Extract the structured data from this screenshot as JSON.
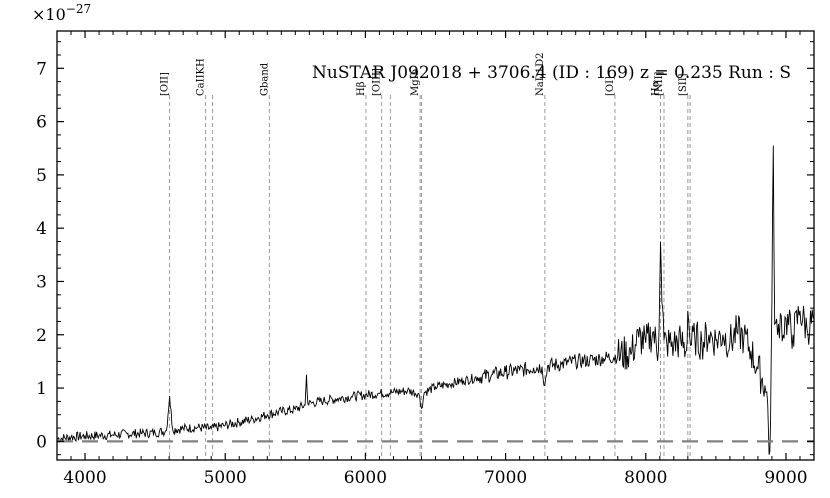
{
  "chart_data": {
    "type": "line",
    "title": "NuSTAR J092018 + 3706.4 (ID : 169)   z = 0.235   Run : S",
    "axis_multiplier": "×10",
    "axis_multiplier_exp": "−27",
    "xlabel": "",
    "ylabel": "",
    "xlim": [
      3800,
      9200
    ],
    "ylim": [
      -0.35,
      7.7
    ],
    "xticks": [
      4000,
      5000,
      6000,
      7000,
      8000,
      9000
    ],
    "yticks": [
      0,
      1,
      2,
      3,
      4,
      5,
      6,
      7
    ],
    "grid": false,
    "zero_line": {
      "y": 0,
      "style": "dashed",
      "color": "#808080"
    },
    "line_color": "#000000",
    "emission_lines": [
      {
        "label": "[OII]",
        "x": 4603
      },
      {
        "label": "CaIIKH",
        "x": 4860
      },
      {
        "label": "CaIIKH",
        "x": 4910
      },
      {
        "label": "Gband",
        "x": 5315
      },
      {
        "label": "Hβ",
        "x": 6004
      },
      {
        "label": "[OIII]",
        "x": 6116
      },
      {
        "label": "[OIII]",
        "x": 6178
      },
      {
        "label": "MgIb",
        "x": 6390
      },
      {
        "label": "MgIb",
        "x": 6400
      },
      {
        "label": "NaD1D2",
        "x": 7280
      },
      {
        "label": "[OI]",
        "x": 7780
      },
      {
        "label": "Hα",
        "x": 8105
      },
      {
        "label": "[NII]",
        "x": 8130
      },
      {
        "label": "[SII]",
        "x": 8300
      },
      {
        "label": "[SII]",
        "x": 8316
      }
    ],
    "series": [
      {
        "values_description": "spectrum flux",
        "x": [
          3800,
          3900,
          4000,
          4100,
          4200,
          4300,
          4400,
          4500,
          4580,
          4603,
          4625,
          4700,
          4800,
          4900,
          5000,
          5100,
          5200,
          5300,
          5400,
          5500,
          5570,
          5580,
          5590,
          5700,
          5800,
          5900,
          6000,
          6100,
          6200,
          6300,
          6380,
          6400,
          6420,
          6500,
          6600,
          6700,
          6800,
          6900,
          7000,
          7100,
          7200,
          7260,
          7280,
          7300,
          7400,
          7500,
          7600,
          7700,
          7800,
          7900,
          7950,
          8000,
          8050,
          8090,
          8105,
          8115,
          8130,
          8150,
          8200,
          8250,
          8290,
          8300,
          8320,
          8350,
          8400,
          8450,
          8500,
          8550,
          8600,
          8650,
          8700,
          8750,
          8800,
          8850,
          8870,
          8880,
          8890,
          8900,
          8910,
          8920,
          8940,
          8960,
          8980,
          9000,
          9050,
          9100,
          9150,
          9200
        ],
        "y": [
          0.05,
          0.08,
          0.1,
          0.11,
          0.12,
          0.14,
          0.15,
          0.16,
          0.2,
          0.85,
          0.22,
          0.24,
          0.26,
          0.24,
          0.3,
          0.36,
          0.42,
          0.5,
          0.56,
          0.6,
          0.68,
          1.25,
          0.7,
          0.76,
          0.8,
          0.84,
          0.87,
          0.9,
          0.92,
          0.95,
          0.9,
          0.62,
          0.92,
          1.02,
          1.08,
          1.14,
          1.2,
          1.25,
          1.3,
          1.33,
          1.38,
          1.4,
          1.05,
          1.42,
          1.45,
          1.5,
          1.52,
          1.56,
          1.6,
          1.68,
          1.95,
          1.85,
          2.05,
          1.7,
          3.75,
          2.6,
          1.9,
          1.85,
          1.82,
          1.88,
          1.7,
          2.45,
          1.8,
          1.95,
          1.85,
          2.0,
          1.9,
          2.0,
          1.85,
          2.05,
          1.95,
          1.7,
          1.35,
          1.05,
          0.7,
          -0.25,
          0.3,
          2.6,
          5.55,
          2.2,
          2.0,
          2.4,
          2.0,
          2.3,
          2.0,
          2.45,
          2.1,
          2.3
        ]
      }
    ]
  }
}
